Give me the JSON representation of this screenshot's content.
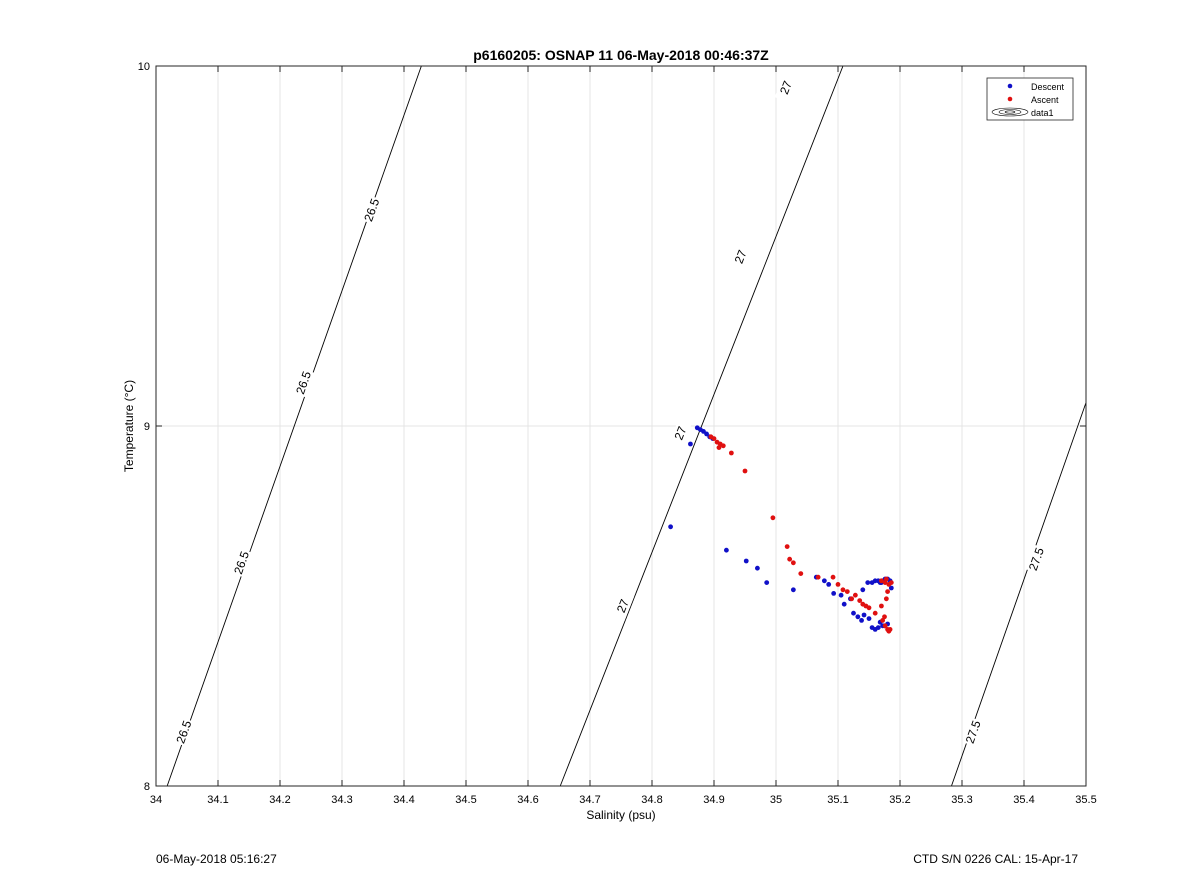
{
  "footer": {
    "left": "06-May-2018 05:16:27",
    "right": "CTD S/N 0226  CAL: 15-Apr-17"
  },
  "colors": {
    "descent": "#1010c8",
    "ascent": "#e01010",
    "grid": "#e4e4e4",
    "contour": "#000000"
  },
  "chart_data": {
    "type": "scatter",
    "title": "p6160205: OSNAP 11 06-May-2018 00:46:37Z",
    "xlabel": "Salinity (psu)",
    "ylabel": "Temperature (°C)",
    "xlim": [
      34,
      35.5
    ],
    "ylim": [
      8,
      10
    ],
    "xticks": [
      34,
      34.1,
      34.2,
      34.3,
      34.4,
      34.5,
      34.6,
      34.7,
      34.8,
      34.9,
      35,
      35.1,
      35.2,
      35.3,
      35.4,
      35.5
    ],
    "xtick_labels": [
      "34",
      "34.1",
      "34.2",
      "34.3",
      "34.4",
      "34.5",
      "34.6",
      "34.7",
      "34.8",
      "34.9",
      "35",
      "35.1",
      "35.2",
      "35.3",
      "35.4",
      "35.5"
    ],
    "yticks": [
      8,
      9,
      10
    ],
    "ytick_labels": [
      "8",
      "9",
      "10"
    ],
    "grid": true,
    "legend": {
      "placement": "top-right",
      "entries": [
        "Descent",
        "Ascent",
        "data1"
      ]
    },
    "contours": [
      {
        "level": "26.5",
        "points": [
          [
            34.018,
            8.0
          ],
          [
            34.428,
            10.0
          ]
        ],
        "labels": [
          [
            34.045,
            8.15
          ],
          [
            34.138,
            8.62
          ],
          [
            34.238,
            9.12
          ],
          [
            34.348,
            9.6
          ]
        ]
      },
      {
        "level": "27",
        "points": [
          [
            34.652,
            8.0
          ],
          [
            35.108,
            10.0
          ]
        ],
        "labels": [
          [
            34.753,
            8.5
          ],
          [
            34.846,
            8.98
          ],
          [
            34.943,
            9.47
          ],
          [
            35.016,
            9.94
          ]
        ]
      },
      {
        "level": "27.5",
        "points": [
          [
            35.283,
            8.0
          ],
          [
            35.5,
            9.065
          ]
        ],
        "labels": [
          [
            35.318,
            8.15
          ],
          [
            35.42,
            8.63
          ]
        ]
      }
    ],
    "series": [
      {
        "name": "Descent",
        "color": "#1010c8",
        "x": [
          34.873,
          34.878,
          34.883,
          34.888,
          34.893,
          34.898,
          34.862,
          34.83,
          34.92,
          34.952,
          34.97,
          34.985,
          35.028,
          35.065,
          35.078,
          35.085,
          35.093,
          35.105,
          35.11,
          35.12,
          35.125,
          35.132,
          35.138,
          35.142,
          35.15,
          35.155,
          35.16,
          35.165,
          35.168,
          35.172,
          35.175,
          35.18,
          35.186,
          35.184,
          35.18,
          35.176,
          35.172,
          35.17,
          35.168,
          35.165,
          35.16,
          35.155,
          35.148,
          35.14
        ],
        "y": [
          8.995,
          8.99,
          8.985,
          8.978,
          8.97,
          8.965,
          8.95,
          8.72,
          8.655,
          8.625,
          8.605,
          8.565,
          8.545,
          8.58,
          8.57,
          8.56,
          8.535,
          8.53,
          8.505,
          8.52,
          8.48,
          8.47,
          8.46,
          8.475,
          8.465,
          8.44,
          8.435,
          8.44,
          8.455,
          8.445,
          8.445,
          8.45,
          8.55,
          8.57,
          8.575,
          8.575,
          8.57,
          8.565,
          8.565,
          8.57,
          8.57,
          8.565,
          8.565,
          8.545
        ]
      },
      {
        "name": "Ascent",
        "color": "#e01010",
        "x": [
          34.895,
          34.9,
          34.905,
          34.91,
          34.915,
          34.908,
          34.928,
          34.95,
          34.995,
          35.018,
          35.022,
          35.028,
          35.04,
          35.068,
          35.092,
          35.1,
          35.108,
          35.115,
          35.122,
          35.128,
          35.135,
          35.14,
          35.145,
          35.15,
          35.16,
          35.17,
          35.178,
          35.18,
          35.182,
          35.178,
          35.175,
          35.172,
          35.176,
          35.18,
          35.182,
          35.184,
          35.186,
          35.176,
          35.17
        ],
        "y": [
          8.97,
          8.965,
          8.955,
          8.95,
          8.945,
          8.94,
          8.925,
          8.875,
          8.745,
          8.665,
          8.63,
          8.62,
          8.59,
          8.58,
          8.58,
          8.56,
          8.545,
          8.54,
          8.52,
          8.53,
          8.515,
          8.505,
          8.5,
          8.495,
          8.48,
          8.5,
          8.52,
          8.54,
          8.56,
          8.575,
          8.47,
          8.46,
          8.445,
          8.435,
          8.43,
          8.435,
          8.565,
          8.565,
          8.57
        ]
      }
    ]
  }
}
